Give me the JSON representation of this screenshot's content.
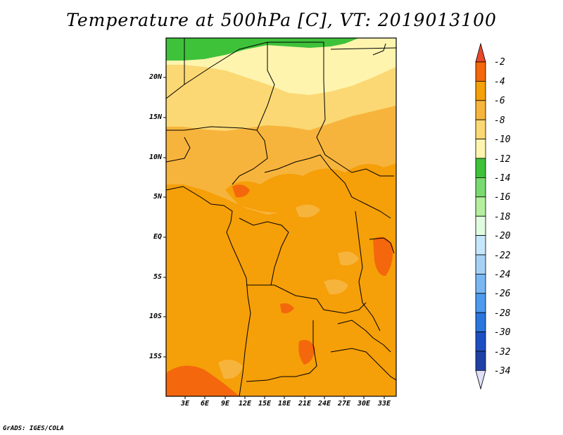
{
  "title": "Temperature at 500hPa [C], VT: 2019013100",
  "credit": "GrADS: IGES/COLA",
  "lat_labels": [
    "20N",
    "15N",
    "10N",
    "5N",
    "EQ",
    "5S",
    "10S",
    "15S"
  ],
  "lon_labels": [
    "3E",
    "6E",
    "9E",
    "12E",
    "15E",
    "18E",
    "21E",
    "24E",
    "27E",
    "30E",
    "33E"
  ],
  "colorbar": {
    "labels": [
      "-2",
      "-4",
      "-6",
      "-8",
      "-10",
      "-12",
      "-14",
      "-16",
      "-18",
      "-20",
      "-22",
      "-24",
      "-26",
      "-28",
      "-30",
      "-32",
      "-34"
    ],
    "colors": [
      "#e9482a",
      "#f4670c",
      "#f59f09",
      "#f7b43c",
      "#fbd873",
      "#fef4ae",
      "#3ec23a",
      "#79da6f",
      "#b4ef9f",
      "#e0fbe0",
      "#c6e6fb",
      "#a6d1f5",
      "#7ab7f2",
      "#4e9aee",
      "#2a76dc",
      "#1e4fc2",
      "#1f40a6",
      "#0f1772"
    ],
    "top_arrow_color": "#e9482a",
    "bottom_arrow_color": "#e0e0f8"
  }
}
